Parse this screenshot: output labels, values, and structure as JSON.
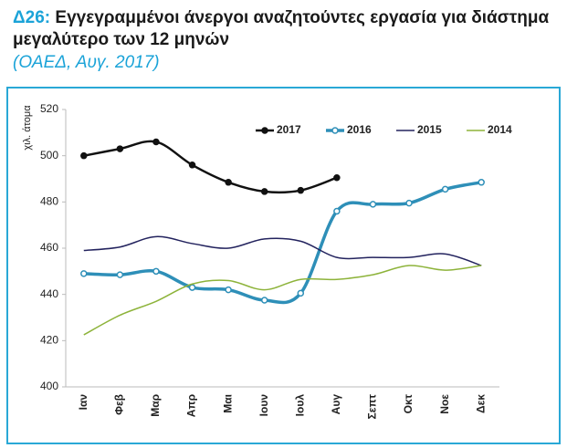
{
  "chart_data": {
    "type": "line",
    "title_label": "Δ26:",
    "title": "Εγγεγραμμένοι άνεργοι αναζητούντες εργασία για διάστημα μεγαλύτερο των 12 μηνών",
    "subtitle": "(ΟΑΕΔ, Αυγ. 2017)",
    "y_label": "χιλ. άτομα",
    "categories": [
      "Ιαν",
      "Φεβ",
      "Μαρ",
      "Απρ",
      "Μαι",
      "Ιουν",
      "Ιουλ",
      "Αυγ",
      "Σεπτ",
      "Οκτ",
      "Νοε",
      "Δεκ"
    ],
    "series": [
      {
        "name": "2017",
        "color": "#111111",
        "marker": "filled",
        "values": [
          500,
          503,
          506,
          496,
          488.5,
          484.5,
          485,
          490.5,
          null,
          null,
          null,
          null
        ]
      },
      {
        "name": "2016",
        "color": "#2e8fb8",
        "marker": "open",
        "values": [
          449,
          448.5,
          450,
          443,
          442,
          437.5,
          440.5,
          476,
          479,
          479.5,
          485.5,
          488.5
        ]
      },
      {
        "name": "2015",
        "color": "#23235e",
        "marker": "none",
        "values": [
          459,
          460.5,
          465,
          462,
          460,
          464,
          463,
          456,
          456,
          456,
          457.5,
          452.5
        ]
      },
      {
        "name": "2014",
        "color": "#8db33a",
        "marker": "none",
        "values": [
          422.5,
          431,
          437,
          444.5,
          446,
          442,
          446.5,
          446.5,
          448.5,
          452.5,
          450.5,
          452.5
        ]
      }
    ],
    "ylim": [
      400,
      520
    ],
    "yticks": [
      400,
      420,
      440,
      460,
      480,
      500,
      520
    ],
    "grid": false,
    "legend": "top"
  }
}
